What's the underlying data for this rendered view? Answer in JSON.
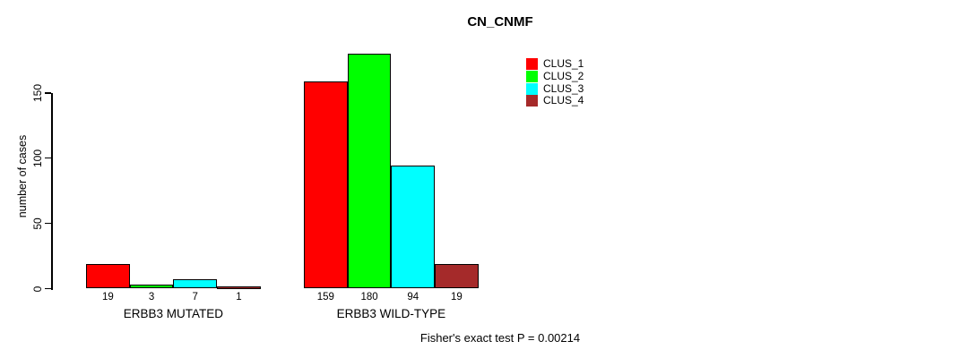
{
  "chart_data": {
    "type": "bar",
    "title": "CN_CNMF",
    "ylabel": "number of cases",
    "xlabel": "",
    "yticks": [
      0,
      50,
      100,
      150
    ],
    "ylim": [
      0,
      185
    ],
    "grid": false,
    "legend_position": "top-right",
    "categories": [
      "ERBB3 MUTATED",
      "ERBB3 WILD-TYPE"
    ],
    "series": [
      {
        "name": "CLUS_1",
        "color": "#FF0000",
        "values": [
          19,
          159
        ]
      },
      {
        "name": "CLUS_2",
        "color": "#00FF00",
        "values": [
          3,
          180
        ]
      },
      {
        "name": "CLUS_3",
        "color": "#00FFFF",
        "values": [
          7,
          94
        ]
      },
      {
        "name": "CLUS_4",
        "color": "#A52A2A",
        "values": [
          1,
          19
        ]
      }
    ],
    "bar_value_labels": [
      [
        "19",
        "3",
        "7",
        "1"
      ],
      [
        "159",
        "180",
        "94",
        "19"
      ]
    ],
    "footer": "Fisher's exact test P = 0.00214"
  }
}
